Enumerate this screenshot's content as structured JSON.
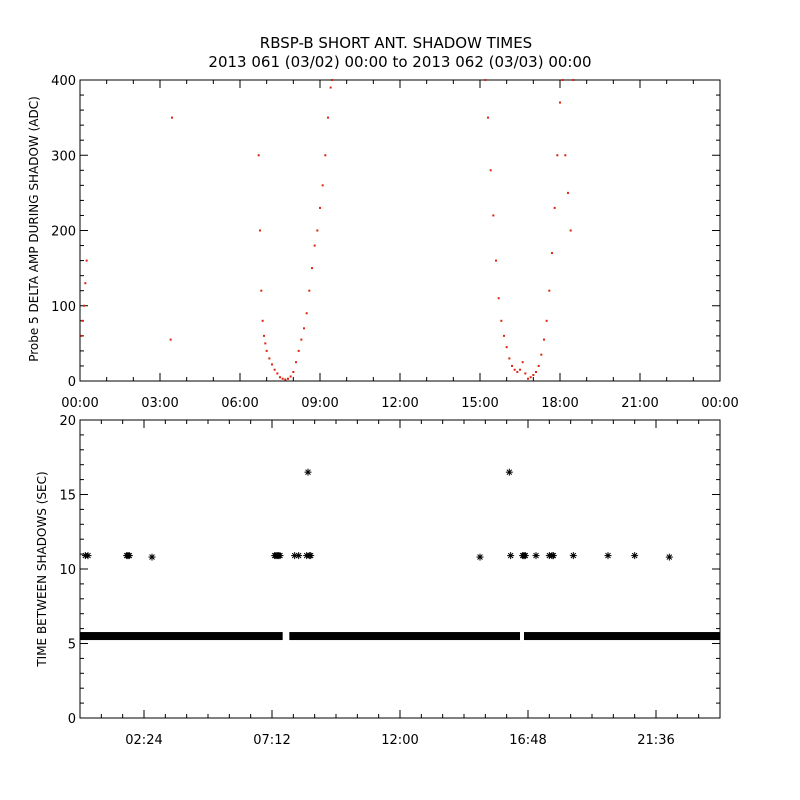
{
  "figure": {
    "title": "RBSP-B SHORT ANT. SHADOW TIMES",
    "subtitle": "2013 061 (03/02) 00:00 to 2013 062 (03/03) 00:00"
  },
  "colors": {
    "background": "#ffffff",
    "axes": "#000000",
    "top_series": "#e0220f",
    "bottom_series": "#000000"
  },
  "chart_data": [
    {
      "type": "scatter",
      "title": "RBSP-B SHORT ANT. SHADOW TIMES",
      "subtitle": "2013 061 (03/02) 00:00 to 2013 062 (03/03) 00:00",
      "xlabel": "",
      "ylabel": "Probe 5 DELTA AMP DURING SHADOW (ADC)",
      "xlim": [
        0,
        24
      ],
      "ylim": [
        0,
        400
      ],
      "x_unit": "hours of 2013-03-02",
      "x_ticks": [
        "00:00",
        "03:00",
        "06:00",
        "09:00",
        "12:00",
        "15:00",
        "18:00",
        "21:00",
        "00:00"
      ],
      "y_ticks": [
        "0",
        "100",
        "200",
        "300",
        "400"
      ],
      "grid": false,
      "marker": "dot",
      "color": "#e0220f",
      "x": [
        0.05,
        0.1,
        0.15,
        0.2,
        0.25,
        3.4,
        3.45,
        6.7,
        6.75,
        6.8,
        6.85,
        6.9,
        6.95,
        7.0,
        7.1,
        7.2,
        7.3,
        7.4,
        7.5,
        7.6,
        7.7,
        7.8,
        7.9,
        8.0,
        8.1,
        8.2,
        8.3,
        8.4,
        8.5,
        8.6,
        8.7,
        8.8,
        8.9,
        9.0,
        9.1,
        9.2,
        9.3,
        9.4,
        9.45,
        15.2,
        15.3,
        15.4,
        15.5,
        15.6,
        15.7,
        15.8,
        15.9,
        16.0,
        16.1,
        16.2,
        16.3,
        16.4,
        16.5,
        16.6,
        16.7,
        16.8,
        16.9,
        17.0,
        17.1,
        17.2,
        17.3,
        17.4,
        17.5,
        17.6,
        17.7,
        17.8,
        17.9,
        18.0,
        18.1,
        18.2,
        18.3,
        18.4,
        18.5
      ],
      "y": [
        60,
        80,
        100,
        130,
        160,
        55,
        350,
        300,
        200,
        120,
        80,
        60,
        50,
        40,
        30,
        22,
        15,
        10,
        5,
        3,
        2,
        3,
        6,
        12,
        25,
        40,
        55,
        70,
        90,
        120,
        150,
        180,
        200,
        230,
        260,
        300,
        350,
        390,
        400,
        400,
        350,
        280,
        220,
        160,
        110,
        80,
        60,
        45,
        30,
        20,
        15,
        12,
        15,
        25,
        10,
        3,
        5,
        8,
        12,
        20,
        35,
        55,
        80,
        120,
        170,
        230,
        300,
        370,
        400,
        300,
        250,
        200,
        400
      ]
    },
    {
      "type": "scatter",
      "xlabel": "",
      "ylabel": "TIME BETWEEN SHADOWS (SEC)",
      "xlim": [
        0,
        24
      ],
      "ylim": [
        0,
        20
      ],
      "x_unit": "hours of 2013-03-02",
      "x_ticks": [
        "02:24",
        "07:12",
        "12:00",
        "16:48",
        "21:36"
      ],
      "y_ticks": [
        "0",
        "5",
        "10",
        "15",
        "20"
      ],
      "grid": false,
      "marker": "asterisk",
      "color": "#000000",
      "baseline": {
        "y": 5.5,
        "x_from": 0,
        "x_to": 24,
        "gaps": [
          [
            7.6,
            7.85
          ],
          [
            16.5,
            16.65
          ]
        ]
      },
      "x": [
        0.2,
        0.3,
        1.75,
        1.8,
        1.85,
        2.7,
        7.3,
        7.35,
        7.4,
        7.45,
        7.5,
        8.05,
        8.2,
        8.5,
        8.55,
        8.6,
        8.65,
        15.0,
        16.1,
        16.15,
        16.6,
        16.65,
        16.7,
        17.1,
        17.6,
        17.7,
        17.75,
        18.5,
        19.8,
        20.8,
        22.1
      ],
      "y": [
        10.9,
        10.9,
        10.9,
        10.9,
        10.9,
        10.8,
        10.9,
        10.9,
        10.9,
        10.9,
        10.9,
        10.9,
        10.9,
        10.9,
        16.5,
        10.9,
        10.9,
        10.8,
        16.5,
        10.9,
        10.9,
        10.9,
        10.9,
        10.9,
        10.9,
        10.9,
        10.9,
        10.9,
        10.9,
        10.9,
        10.8
      ]
    }
  ]
}
